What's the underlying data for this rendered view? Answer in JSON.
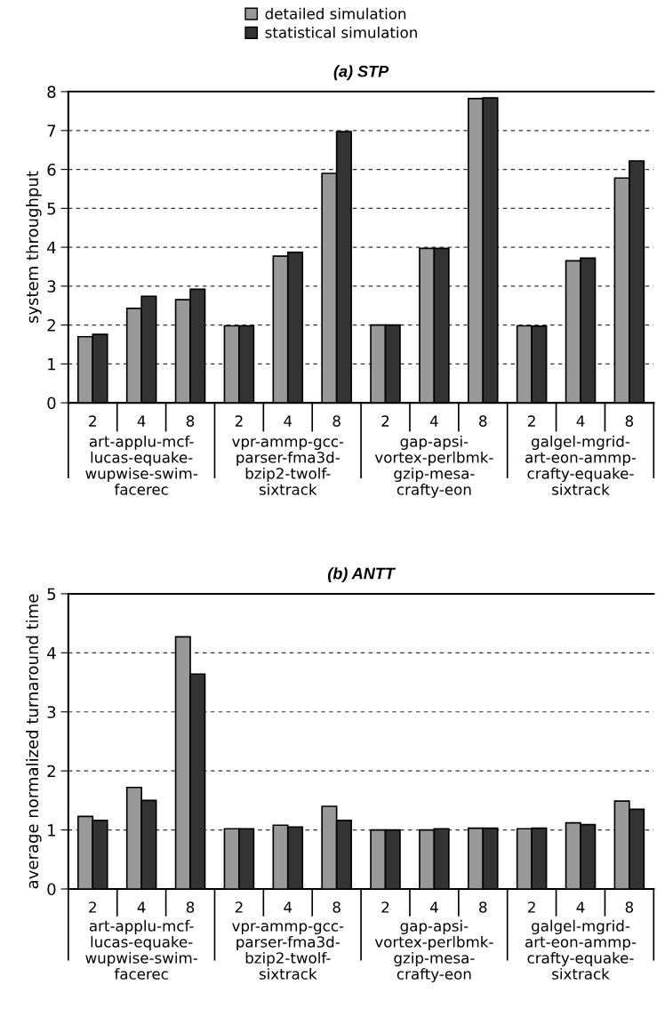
{
  "chart_data": [
    {
      "type": "bar",
      "title": "(a) STP",
      "ylabel": "system throughput",
      "categories": [
        "2",
        "4",
        "8",
        "2",
        "4",
        "8",
        "2",
        "4",
        "8",
        "2",
        "4",
        "8"
      ],
      "series": [
        {
          "name": "detailed simulation",
          "color": "#999999",
          "values": [
            1.7,
            2.43,
            2.65,
            1.98,
            3.77,
            5.9,
            2.0,
            3.97,
            7.82,
            1.98,
            3.65,
            5.78
          ]
        },
        {
          "name": "statistical simulation",
          "color": "#333333",
          "values": [
            1.76,
            2.74,
            2.92,
            1.98,
            3.87,
            6.97,
            2.0,
            3.97,
            7.84,
            1.97,
            3.72,
            6.22
          ]
        }
      ],
      "ylim": [
        0,
        8
      ],
      "yticks": [
        0,
        1,
        2,
        3,
        4,
        5,
        6,
        7,
        8
      ],
      "grid": "y",
      "legend": "top",
      "annotations": [
        "art-applu-mcf-\nlucas-equake-\nwupwise-swim-\nfacerec",
        "vpr-ammp-gcc-\nparser-fma3d-\nbzip2-twolf-\nsixtrack",
        "gap-apsi-\nvortex-perlbmk-\ngzip-mesa-\ncrafty-eon",
        "galgel-mgrid-\nart-eon-ammp-\ncrafty-equake-\nsixtrack"
      ]
    },
    {
      "type": "bar",
      "title": "(b) ANTT",
      "ylabel": "average normalized turnaround time",
      "categories": [
        "2",
        "4",
        "8",
        "2",
        "4",
        "8",
        "2",
        "4",
        "8",
        "2",
        "4",
        "8"
      ],
      "series": [
        {
          "color": "#999999",
          "values": [
            1.23,
            1.72,
            4.27,
            1.02,
            1.08,
            1.4,
            1.0,
            1.0,
            1.03,
            1.02,
            1.12,
            1.49
          ]
        },
        {
          "color": "#333333",
          "values": [
            1.16,
            1.5,
            3.64,
            1.02,
            1.05,
            1.16,
            1.0,
            1.02,
            1.03,
            1.03,
            1.09,
            1.35
          ]
        }
      ],
      "ylim": [
        0,
        5
      ],
      "yticks": [
        0,
        1,
        2,
        3,
        4,
        5
      ],
      "grid": "y",
      "annotations": [
        "art-applu-mcf-\nlucas-equake-\nwupwise-swim-\nfacerec",
        "vpr-ammp-gcc-\nparser-fma3d-\nbzip2-twolf-\nsixtrack",
        "gap-apsi-\nvortex-perlbmk-\ngzip-mesa-\ncrafty-eon",
        "galgel-mgrid-\nart-eon-ammp-\ncrafty-equake-\nsixtrack"
      ]
    }
  ]
}
